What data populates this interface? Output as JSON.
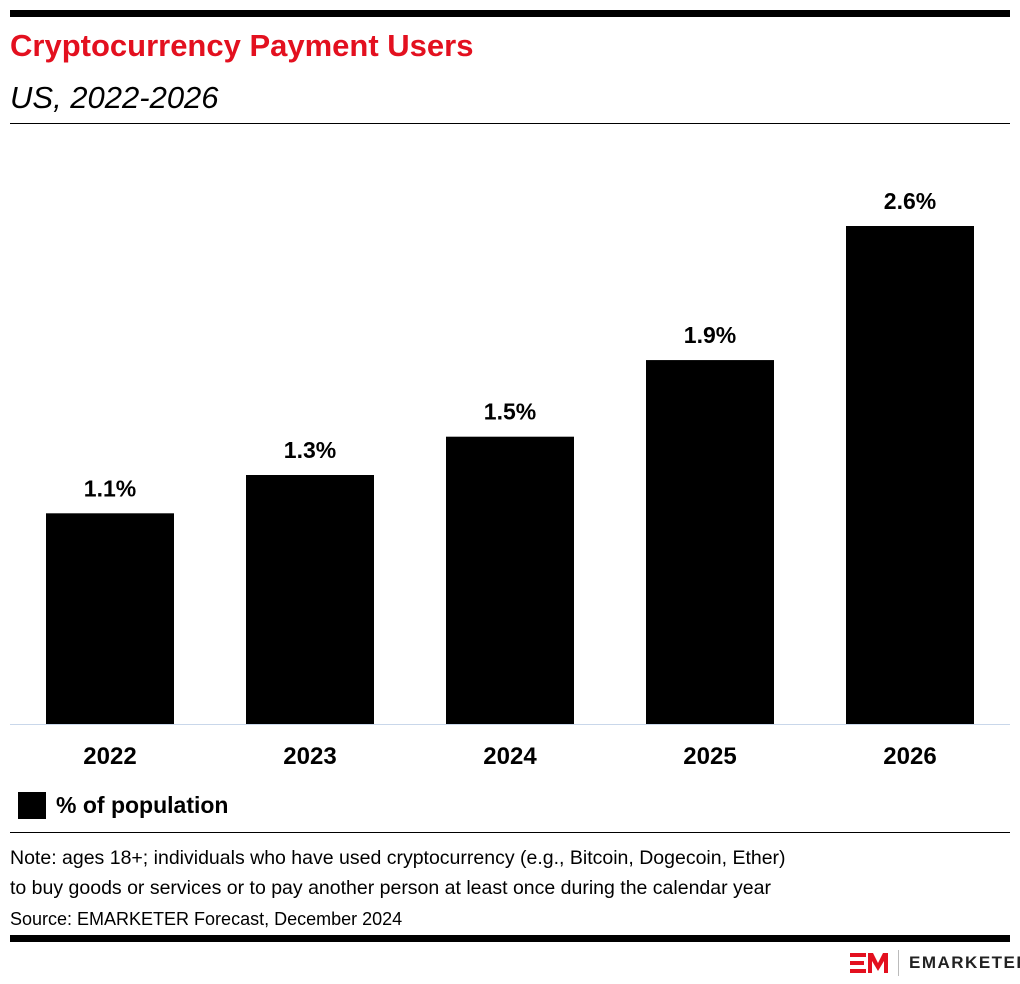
{
  "header": {
    "title": "Cryptocurrency Payment Users",
    "subtitle": "US, 2022-2026"
  },
  "chart_data": {
    "type": "bar",
    "categories": [
      "2022",
      "2023",
      "2024",
      "2025",
      "2026"
    ],
    "series": [
      {
        "name": "% of population",
        "values": [
          1.1,
          1.3,
          1.5,
          1.9,
          2.6
        ]
      }
    ],
    "data_labels": [
      "1.1%",
      "1.3%",
      "1.5%",
      "1.9%",
      "2.6%"
    ],
    "ylim": [
      0,
      2.6
    ],
    "grid": false,
    "legend": "bottom-left",
    "bar_color": "#000000",
    "baseline_color": "#c9d7ea"
  },
  "legend": {
    "label": "% of population"
  },
  "footer": {
    "note_line1": "Note: ages 18+; individuals who have used cryptocurrency (e.g., Bitcoin, Dogecoin, Ether)",
    "note_line2": "to buy goods or services or to pay another person at least once during the calendar year",
    "source": "Source: EMARKETER Forecast, December 2024",
    "brand": "EMARKETER",
    "brand_color": "#e3101f"
  }
}
